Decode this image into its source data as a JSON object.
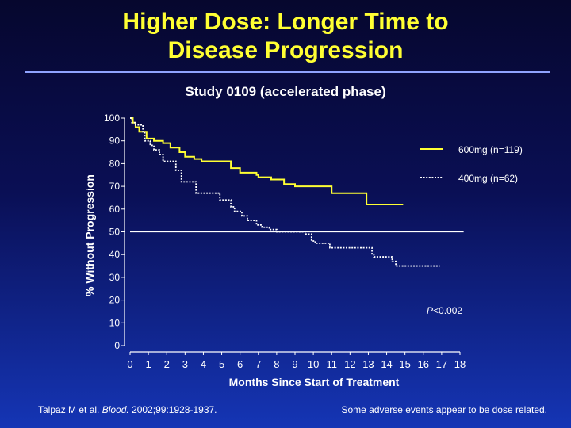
{
  "slide": {
    "title_line1": "Higher Dose:  Longer Time to",
    "title_line2": "Disease  Progression",
    "subtitle": "Study 0109 (accelerated phase)",
    "footer": {
      "citation_pre": "Talpaz M et al. ",
      "citation_journal": "Blood.",
      "citation_post": "  2002;99:1928-1937.",
      "note": "Some adverse events appear to be dose related."
    },
    "colors": {
      "title": "#ffff33",
      "series_600": "#ffff33",
      "series_400": "#ffffff",
      "reference_line": "#ffffff"
    }
  },
  "chart_data": {
    "type": "line",
    "xlabel": "Months Since Start of Treatment",
    "ylabel": "% Without Progression",
    "xlim": [
      0,
      18
    ],
    "ylim": [
      0,
      100
    ],
    "x_ticks": [
      0,
      1,
      2,
      3,
      4,
      5,
      6,
      7,
      8,
      9,
      10,
      11,
      12,
      13,
      14,
      15,
      16,
      17,
      18
    ],
    "y_ticks": [
      0,
      10,
      20,
      30,
      40,
      50,
      60,
      70,
      80,
      90,
      100
    ],
    "reference_line": 50,
    "annotation": {
      "italic": "P",
      "rest": "<0.002"
    },
    "series": [
      {
        "name": "600mg (n=119)",
        "style": "solid",
        "step_points": [
          [
            0,
            100
          ],
          [
            0.15,
            98
          ],
          [
            0.3,
            96
          ],
          [
            0.5,
            94
          ],
          [
            0.9,
            91
          ],
          [
            1.3,
            90
          ],
          [
            1.8,
            89
          ],
          [
            2.2,
            87
          ],
          [
            2.7,
            85
          ],
          [
            3.0,
            83
          ],
          [
            3.5,
            82
          ],
          [
            3.9,
            81
          ],
          [
            5.5,
            78
          ],
          [
            6.0,
            76
          ],
          [
            6.9,
            75
          ],
          [
            7.0,
            74
          ],
          [
            7.7,
            73
          ],
          [
            8.4,
            71
          ],
          [
            9.0,
            70
          ],
          [
            11.0,
            67
          ],
          [
            12.9,
            62
          ],
          [
            14.9,
            62
          ]
        ]
      },
      {
        "name": "400mg (n=62)",
        "style": "dotted",
        "step_points": [
          [
            0,
            100
          ],
          [
            0.1,
            98
          ],
          [
            0.3,
            97
          ],
          [
            0.7,
            94
          ],
          [
            0.8,
            90
          ],
          [
            1.1,
            88
          ],
          [
            1.3,
            86
          ],
          [
            1.6,
            84
          ],
          [
            1.8,
            81
          ],
          [
            2.5,
            77
          ],
          [
            2.8,
            72
          ],
          [
            3.6,
            67
          ],
          [
            4.9,
            64
          ],
          [
            5.5,
            61
          ],
          [
            5.7,
            59
          ],
          [
            6.1,
            57
          ],
          [
            6.4,
            55
          ],
          [
            6.9,
            53
          ],
          [
            7.2,
            52
          ],
          [
            7.6,
            51
          ],
          [
            8.0,
            50
          ],
          [
            9.6,
            49
          ],
          [
            9.9,
            46
          ],
          [
            10.1,
            45
          ],
          [
            10.9,
            43
          ],
          [
            13.2,
            40
          ],
          [
            13.3,
            39
          ],
          [
            14.3,
            37
          ],
          [
            14.5,
            35
          ],
          [
            16.9,
            35
          ]
        ]
      }
    ]
  }
}
